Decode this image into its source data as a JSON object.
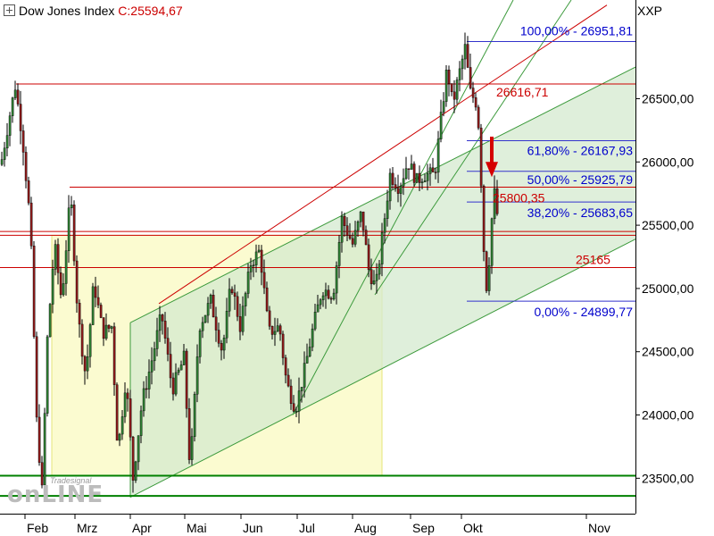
{
  "header": {
    "instrument": "Dow Jones Index",
    "close_label": "C:25594,67",
    "symbol": "XXP"
  },
  "watermark": {
    "small": "Tradesignal",
    "big": "onLINE"
  },
  "chart_data": {
    "type": "candlestick",
    "title": "Dow Jones Index",
    "symbol": "XXP",
    "last_close": 25594.67,
    "y_axis": {
      "ylim": [
        23220,
        27280
      ],
      "ticks": [
        23500,
        24000,
        24500,
        25000,
        25500,
        26000,
        26500
      ],
      "tick_labels": [
        "23500,00",
        "24000,00",
        "24500,00",
        "25000,00",
        "25500,00",
        "26000,00",
        "26500,00"
      ],
      "position": "right"
    },
    "x_axis": {
      "labels": [
        "Feb",
        "Mrz",
        "Apr",
        "Mai",
        "Jun",
        "Jul",
        "Aug",
        "Sep",
        "Okt",
        "Nov"
      ]
    },
    "price_path": [
      [
        0,
        25980
      ],
      [
        8,
        26300
      ],
      [
        16,
        26600
      ],
      [
        24,
        26200
      ],
      [
        33,
        25500
      ],
      [
        40,
        23950
      ],
      [
        46,
        23400
      ],
      [
        52,
        24600
      ],
      [
        60,
        25350
      ],
      [
        68,
        24900
      ],
      [
        78,
        25750
      ],
      [
        86,
        24800
      ],
      [
        95,
        24300
      ],
      [
        104,
        25050
      ],
      [
        114,
        24650
      ],
      [
        124,
        24700
      ],
      [
        131,
        23700
      ],
      [
        140,
        24300
      ],
      [
        148,
        23500
      ],
      [
        158,
        24100
      ],
      [
        168,
        24400
      ],
      [
        180,
        24800
      ],
      [
        192,
        24200
      ],
      [
        205,
        24450
      ],
      [
        212,
        23550
      ],
      [
        222,
        24700
      ],
      [
        235,
        24900
      ],
      [
        248,
        24500
      ],
      [
        258,
        25050
      ],
      [
        268,
        24700
      ],
      [
        280,
        25200
      ],
      [
        290,
        25300
      ],
      [
        300,
        24650
      ],
      [
        312,
        24700
      ],
      [
        320,
        24250
      ],
      [
        330,
        24050
      ],
      [
        340,
        24350
      ],
      [
        350,
        24700
      ],
      [
        360,
        25000
      ],
      [
        372,
        24950
      ],
      [
        382,
        25550
      ],
      [
        394,
        25350
      ],
      [
        404,
        25600
      ],
      [
        412,
        25150
      ],
      [
        420,
        25000
      ],
      [
        428,
        25450
      ],
      [
        436,
        25900
      ],
      [
        446,
        25800
      ],
      [
        456,
        26000
      ],
      [
        466,
        25850
      ],
      [
        474,
        25900
      ],
      [
        486,
        25900
      ],
      [
        494,
        26400
      ],
      [
        500,
        26750
      ],
      [
        506,
        26450
      ],
      [
        512,
        26650
      ],
      [
        520,
        26900
      ],
      [
        526,
        26550
      ],
      [
        534,
        26450
      ],
      [
        538,
        25850
      ],
      [
        543,
        24950
      ],
      [
        548,
        25300
      ],
      [
        552,
        25800
      ],
      [
        556,
        25590
      ]
    ],
    "horizontal_levels": [
      {
        "value": 26616.71,
        "label": "26616,71",
        "color": "#cc0000"
      },
      {
        "value": 25800.35,
        "label": "25800,35",
        "color": "#cc0000"
      },
      {
        "value": 25165,
        "label": "25165",
        "color": "#cc0000"
      },
      {
        "value": 25450,
        "label": "",
        "color": "#cc0000"
      },
      {
        "value": 25420,
        "label": "",
        "color": "#cc0000"
      },
      {
        "value": 23520,
        "label": "",
        "color": "#008000"
      },
      {
        "value": 23360,
        "label": "",
        "color": "#008000"
      }
    ],
    "fibonacci": [
      {
        "ratio": "100,00%",
        "value": 26951.81,
        "label": "100,00% - 26951,81"
      },
      {
        "ratio": "61,80%",
        "value": 26167.93,
        "label": "61,80% - 26167,93"
      },
      {
        "ratio": "50,00%",
        "value": 25925.79,
        "label": "50,00% - 25925,79"
      },
      {
        "ratio": "38,20%",
        "value": 25683.65,
        "label": "38,20% - 25683,65"
      },
      {
        "ratio": "0,00%",
        "value": 24899.77,
        "label": "0,00% - 24899,77"
      }
    ],
    "yellow_zone": {
      "from": 23520,
      "to": 25420
    },
    "trend_channel": {
      "lower_line": {
        "from": 23350,
        "to": 25390
      },
      "upper_line": {
        "from": 24730,
        "to": 26750
      }
    },
    "colors": {
      "up_candle": "#2e7d32",
      "down_candle": "#8b1a1a",
      "resistance": "#cc0000",
      "fibonacci": "#0000cc",
      "channel_fill": "#d4e9cf",
      "yellow_zone_fill": "#fbfbd0",
      "support": "#008000",
      "signal_arrow": "#d50000"
    },
    "signal_arrow": "down-arrow"
  }
}
